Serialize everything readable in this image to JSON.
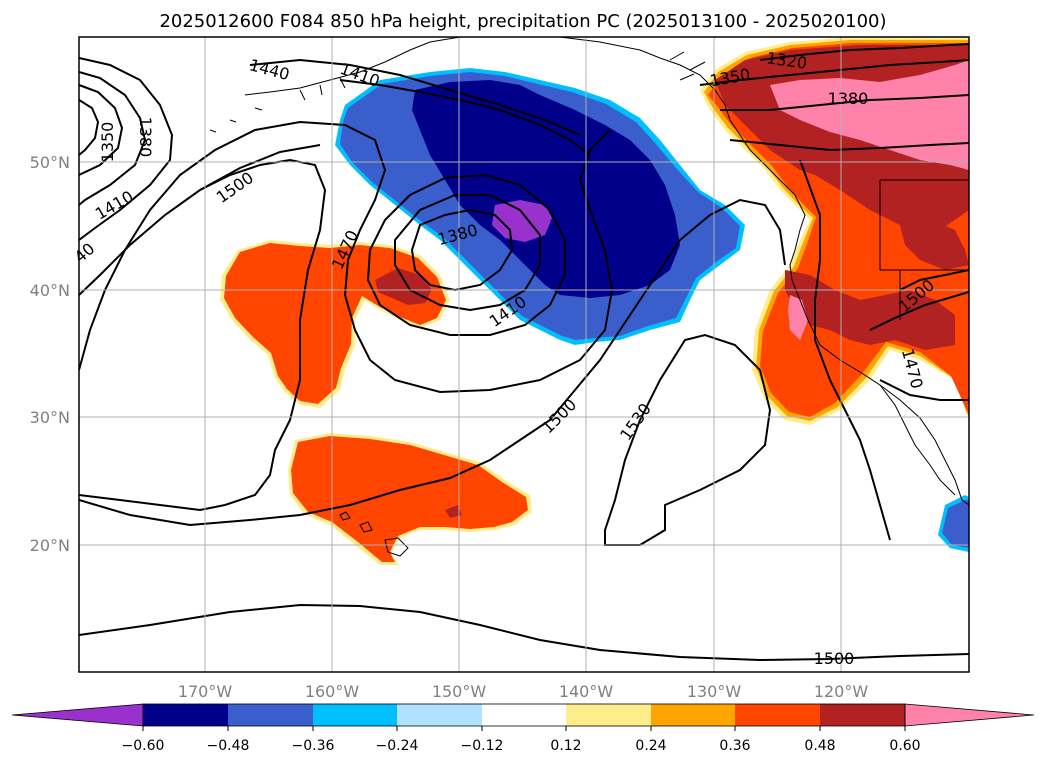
{
  "title": "2025012600 F084 850 hPa height, precipitation PC (2025013100 - 2025020100)",
  "lat_labels": [
    "50°N",
    "40°N",
    "30°N",
    "20°N"
  ],
  "lon_labels": [
    "170°W",
    "160°W",
    "150°W",
    "140°W",
    "130°W",
    "120°W"
  ],
  "contour_labels": [
    "1440",
    "1410",
    "1350",
    "1320",
    "1380",
    "1350",
    "1380",
    "1410",
    "40",
    "1500",
    "1470",
    "1380",
    "1410",
    "1500",
    "1530",
    "1500",
    "1470",
    "1500"
  ],
  "colorbar": {
    "colors": [
      "#9932CC",
      "#00008B",
      "#3A5FCD",
      "#00BFFF",
      "#B0E2FF",
      "#FFFFFF",
      "#FFEC8B",
      "#FFA500",
      "#FF4500",
      "#B22222",
      "#FF82AB"
    ],
    "tick_labels": [
      "−0.60",
      "−0.48",
      "−0.36",
      "−0.24",
      "−0.12",
      "0.12",
      "0.24",
      "0.36",
      "0.48",
      "0.60"
    ]
  }
}
